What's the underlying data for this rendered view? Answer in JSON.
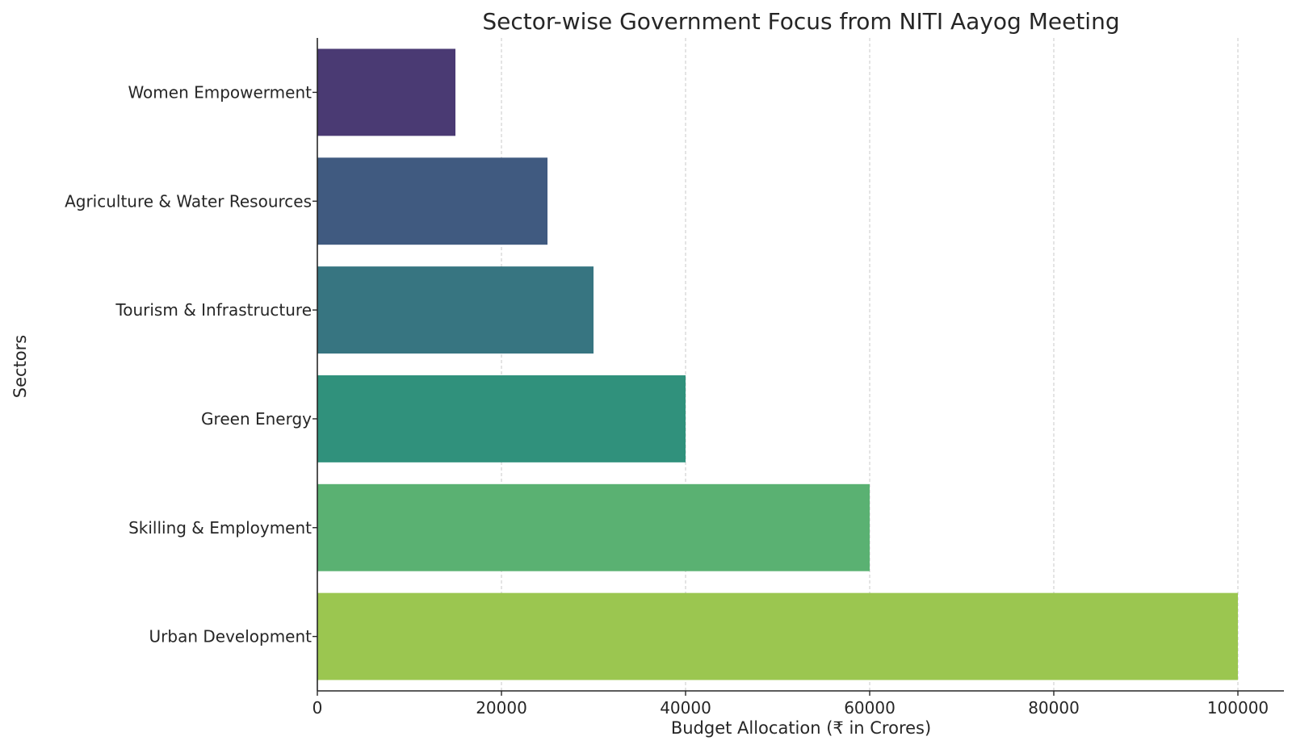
{
  "chart_data": {
    "type": "bar",
    "orientation": "horizontal",
    "title": "Sector-wise Government Focus from NITI Aayog Meeting",
    "xlabel": "Budget Allocation (₹ in Crores)",
    "ylabel": "Sectors",
    "categories": [
      "Women Empowerment",
      "Agriculture & Water Resources",
      "Tourism & Infrastructure",
      "Green Energy",
      "Skilling & Employment",
      "Urban Development"
    ],
    "values": [
      15000,
      25000,
      30000,
      40000,
      60000,
      100000
    ],
    "colors": [
      "#4a3a73",
      "#405a80",
      "#377581",
      "#30917c",
      "#5ab172",
      "#9bc650"
    ],
    "xlim": [
      0,
      105000
    ],
    "xticks": [
      0,
      20000,
      40000,
      60000,
      80000,
      100000
    ],
    "grid": "x-dashed",
    "legend": "none"
  }
}
